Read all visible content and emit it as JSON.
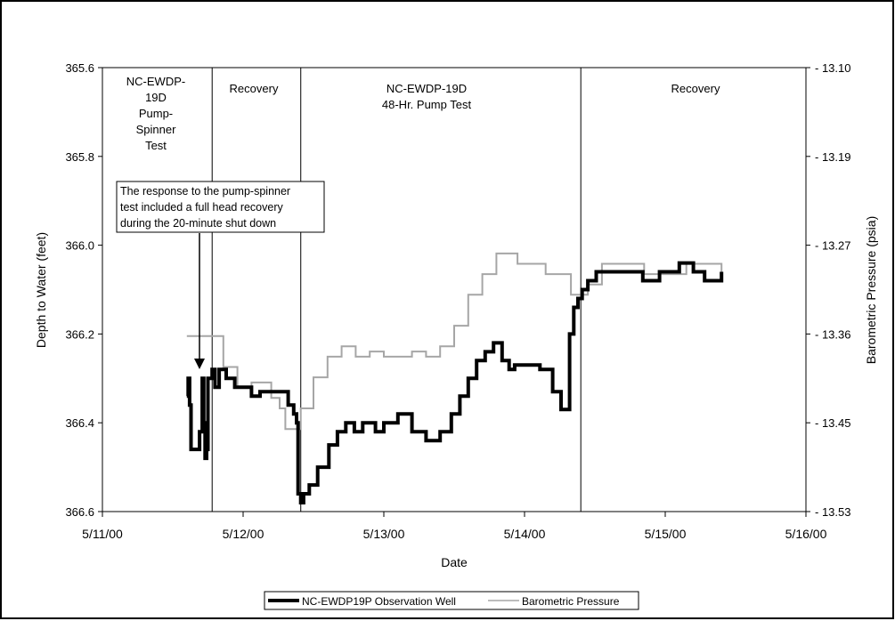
{
  "chart_data": {
    "type": "line",
    "title": "",
    "xlabel": "Date",
    "ylabel": "Depth to Water (feet)",
    "y2label": "Barometric Pressure (psia)",
    "x_range": [
      "5/11/00",
      "5/16/00"
    ],
    "x_ticks": [
      "5/11/00",
      "5/12/00",
      "5/13/00",
      "5/14/00",
      "5/15/00",
      "5/16/00"
    ],
    "ylim": [
      366.6,
      365.6
    ],
    "y_inverted": true,
    "y_ticks": [
      "365.6",
      "365.8",
      "366.0",
      "366.2",
      "366.4",
      "366.6"
    ],
    "y2lim": [
      13.53,
      13.1
    ],
    "y2_ticks": [
      "13.10",
      "13.19",
      "13.27",
      "13.36",
      "13.45",
      "13.53"
    ],
    "grid": false,
    "legend_position": "bottom",
    "series": [
      {
        "name": "NC-EWDP19P Observation Well",
        "color": "#000000",
        "axis": "left",
        "x": [
          "5/11/00 14:24",
          "5/11/00 14:38",
          "5/11/00 14:52",
          "5/11/00 15:07",
          "5/11/00 16:05",
          "5/11/00 16:34",
          "5/11/00 17:02",
          "5/11/00 17:17",
          "5/11/00 17:31",
          "5/11/00 17:46",
          "5/11/00 18:00",
          "5/11/00 18:43",
          "5/11/00 19:12",
          "5/11/00 19:55",
          "5/11/00 21:07",
          "5/11/00 22:34",
          "5/12/00 00:00",
          "5/12/00 01:26",
          "5/12/00 02:53",
          "5/12/00 04:48",
          "5/12/00 06:14",
          "5/12/00 07:41",
          "5/12/00 08:38",
          "5/12/00 09:07",
          "5/12/00 09:22",
          "5/12/00 09:50",
          "5/12/00 10:19",
          "5/12/00 11:17",
          "5/12/00 12:43",
          "5/12/00 14:38",
          "5/12/00 16:05",
          "5/12/00 17:31",
          "5/12/00 18:58",
          "5/12/00 20:24",
          "5/12/00 22:34",
          "5/13/00 00:00",
          "5/13/00 02:24",
          "5/13/00 04:48",
          "5/13/00 07:12",
          "5/13/00 09:36",
          "5/13/00 11:31",
          "5/13/00 12:58",
          "5/13/00 14:24",
          "5/13/00 15:50",
          "5/13/00 17:17",
          "5/13/00 18:43",
          "5/13/00 20:10",
          "5/13/00 21:22",
          "5/13/00 22:19",
          "5/13/00 23:46",
          "5/14/00 01:12",
          "5/14/00 02:38",
          "5/14/00 04:48",
          "5/14/00 06:14",
          "5/14/00 07:41",
          "5/14/00 08:24",
          "5/14/00 09:07",
          "5/14/00 09:22",
          "5/14/00 09:50",
          "5/14/00 10:48",
          "5/14/00 12:14",
          "5/14/00 14:24",
          "5/14/00 17:17",
          "5/14/00 20:10",
          "5/14/00 23:02",
          "5/15/00 02:24",
          "5/15/00 04:48",
          "5/15/00 06:43",
          "5/15/00 09:36"
        ],
        "values": [
          366.34,
          366.3,
          366.36,
          366.46,
          366.46,
          366.42,
          366.3,
          366.4,
          366.48,
          366.46,
          366.3,
          366.28,
          366.32,
          366.28,
          366.3,
          366.32,
          366.32,
          366.34,
          366.33,
          366.33,
          366.33,
          366.36,
          366.38,
          366.4,
          366.56,
          366.58,
          366.56,
          366.54,
          366.5,
          366.45,
          366.42,
          366.4,
          366.42,
          366.4,
          366.42,
          366.4,
          366.38,
          366.42,
          366.44,
          366.42,
          366.38,
          366.34,
          366.3,
          366.26,
          366.24,
          366.22,
          366.26,
          366.28,
          366.27,
          366.27,
          366.27,
          366.28,
          366.33,
          366.37,
          366.2,
          366.14,
          366.12,
          366.12,
          366.1,
          366.08,
          366.06,
          366.06,
          366.06,
          366.08,
          366.06,
          366.04,
          366.06,
          366.08,
          366.06
        ]
      },
      {
        "name": "Barometric Pressure",
        "color": "#a6a6a6",
        "axis": "right",
        "x": [
          "5/11/00 14:24",
          "5/11/00 18:00",
          "5/11/00 20:38",
          "5/11/00 23:02",
          "5/12/00 01:26",
          "5/12/00 04:48",
          "5/12/00 06:14",
          "5/12/00 07:12",
          "5/12/00 08:38",
          "5/12/00 09:50",
          "5/12/00 12:00",
          "5/12/00 14:24",
          "5/12/00 16:48",
          "5/12/00 19:12",
          "5/12/00 21:36",
          "5/13/00 00:00",
          "5/13/00 02:24",
          "5/13/00 04:48",
          "5/13/00 07:12",
          "5/13/00 09:36",
          "5/13/00 12:00",
          "5/13/00 14:24",
          "5/13/00 16:48",
          "5/13/00 19:12",
          "5/13/00 20:24",
          "5/13/00 22:48",
          "5/14/00 01:12",
          "5/14/00 03:36",
          "5/14/00 06:00",
          "5/14/00 07:55",
          "5/14/00 09:07",
          "5/14/00 10:48",
          "5/14/00 13:12",
          "5/14/00 16:48",
          "5/14/00 20:24",
          "5/15/00 00:00",
          "5/15/00 03:36",
          "5/15/00 06:43",
          "5/15/00 09:36"
        ],
        "values": [
          13.36,
          13.36,
          13.39,
          13.41,
          13.405,
          13.42,
          13.43,
          13.45,
          13.45,
          13.43,
          13.4,
          13.38,
          13.37,
          13.38,
          13.375,
          13.38,
          13.38,
          13.375,
          13.38,
          13.37,
          13.35,
          13.32,
          13.3,
          13.28,
          13.28,
          13.29,
          13.29,
          13.3,
          13.3,
          13.32,
          13.32,
          13.31,
          13.29,
          13.29,
          13.3,
          13.3,
          13.29,
          13.29,
          13.3
        ]
      }
    ],
    "annotations": [
      {
        "id": "period1",
        "text_lines": [
          "NC-EWDP-",
          "19D",
          "Pump-",
          "Spinner",
          "Test"
        ]
      },
      {
        "id": "period2",
        "text_lines": [
          "Recovery"
        ]
      },
      {
        "id": "period3",
        "text_lines": [
          "NC-EWDP-19D",
          "48-Hr. Pump Test"
        ]
      },
      {
        "id": "period4",
        "text_lines": [
          "Recovery"
        ]
      },
      {
        "id": "callout",
        "text_lines": [
          "The response to the pump-spinner",
          "test included a full head recovery",
          "during the 20-minute shut down"
        ]
      }
    ],
    "period_boundaries": [
      "5/11/00 18:43",
      "5/12/00 09:50",
      "5/14/00 09:36"
    ]
  }
}
